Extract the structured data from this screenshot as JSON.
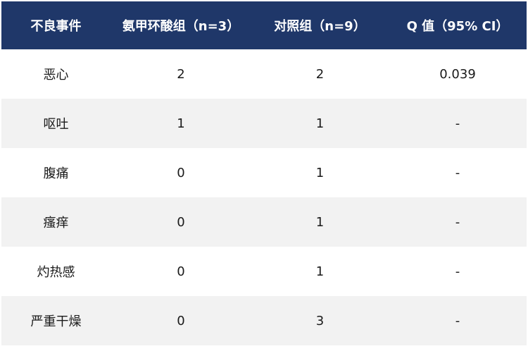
{
  "colors": {
    "header_bg": "#1f3769",
    "alt_row_bg": "#f2f2f2"
  },
  "table": {
    "headers": [
      "不良事件",
      "氨甲环酸组（n=3）",
      "对照组（n=9）",
      "Q 值（95% CI）"
    ],
    "rows": [
      [
        "恶心",
        "2",
        "2",
        "0.039"
      ],
      [
        "呕吐",
        "1",
        "1",
        "-"
      ],
      [
        "腹痛",
        "0",
        "1",
        "-"
      ],
      [
        "瘙痒",
        "0",
        "1",
        "-"
      ],
      [
        "灼热感",
        "0",
        "1",
        "-"
      ],
      [
        "严重干燥",
        "0",
        "3",
        "-"
      ]
    ]
  }
}
